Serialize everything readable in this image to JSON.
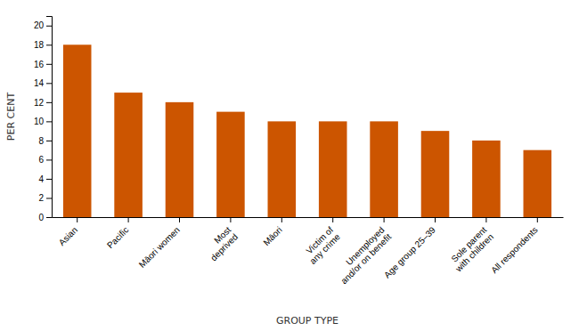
{
  "chart_data": {
    "type": "bar",
    "categories": [
      "Asian",
      "Pacific",
      "Māori women",
      "Most\ndeprived",
      "Māori",
      "Victim of\nany crime",
      "Unemployed\nand/or on benefit",
      "Age group 25–39",
      "Sole parent\nwith children",
      "All respondents"
    ],
    "values": [
      18,
      13,
      12,
      11,
      10,
      10,
      10,
      9,
      8,
      7
    ],
    "color": "#cc5500",
    "xlabel": "GROUP TYPE",
    "ylabel": "PER CENT",
    "ylim": [
      0,
      21
    ],
    "yticks": [
      0,
      2,
      4,
      6,
      8,
      10,
      12,
      14,
      16,
      18,
      20
    ],
    "grid": false
  }
}
